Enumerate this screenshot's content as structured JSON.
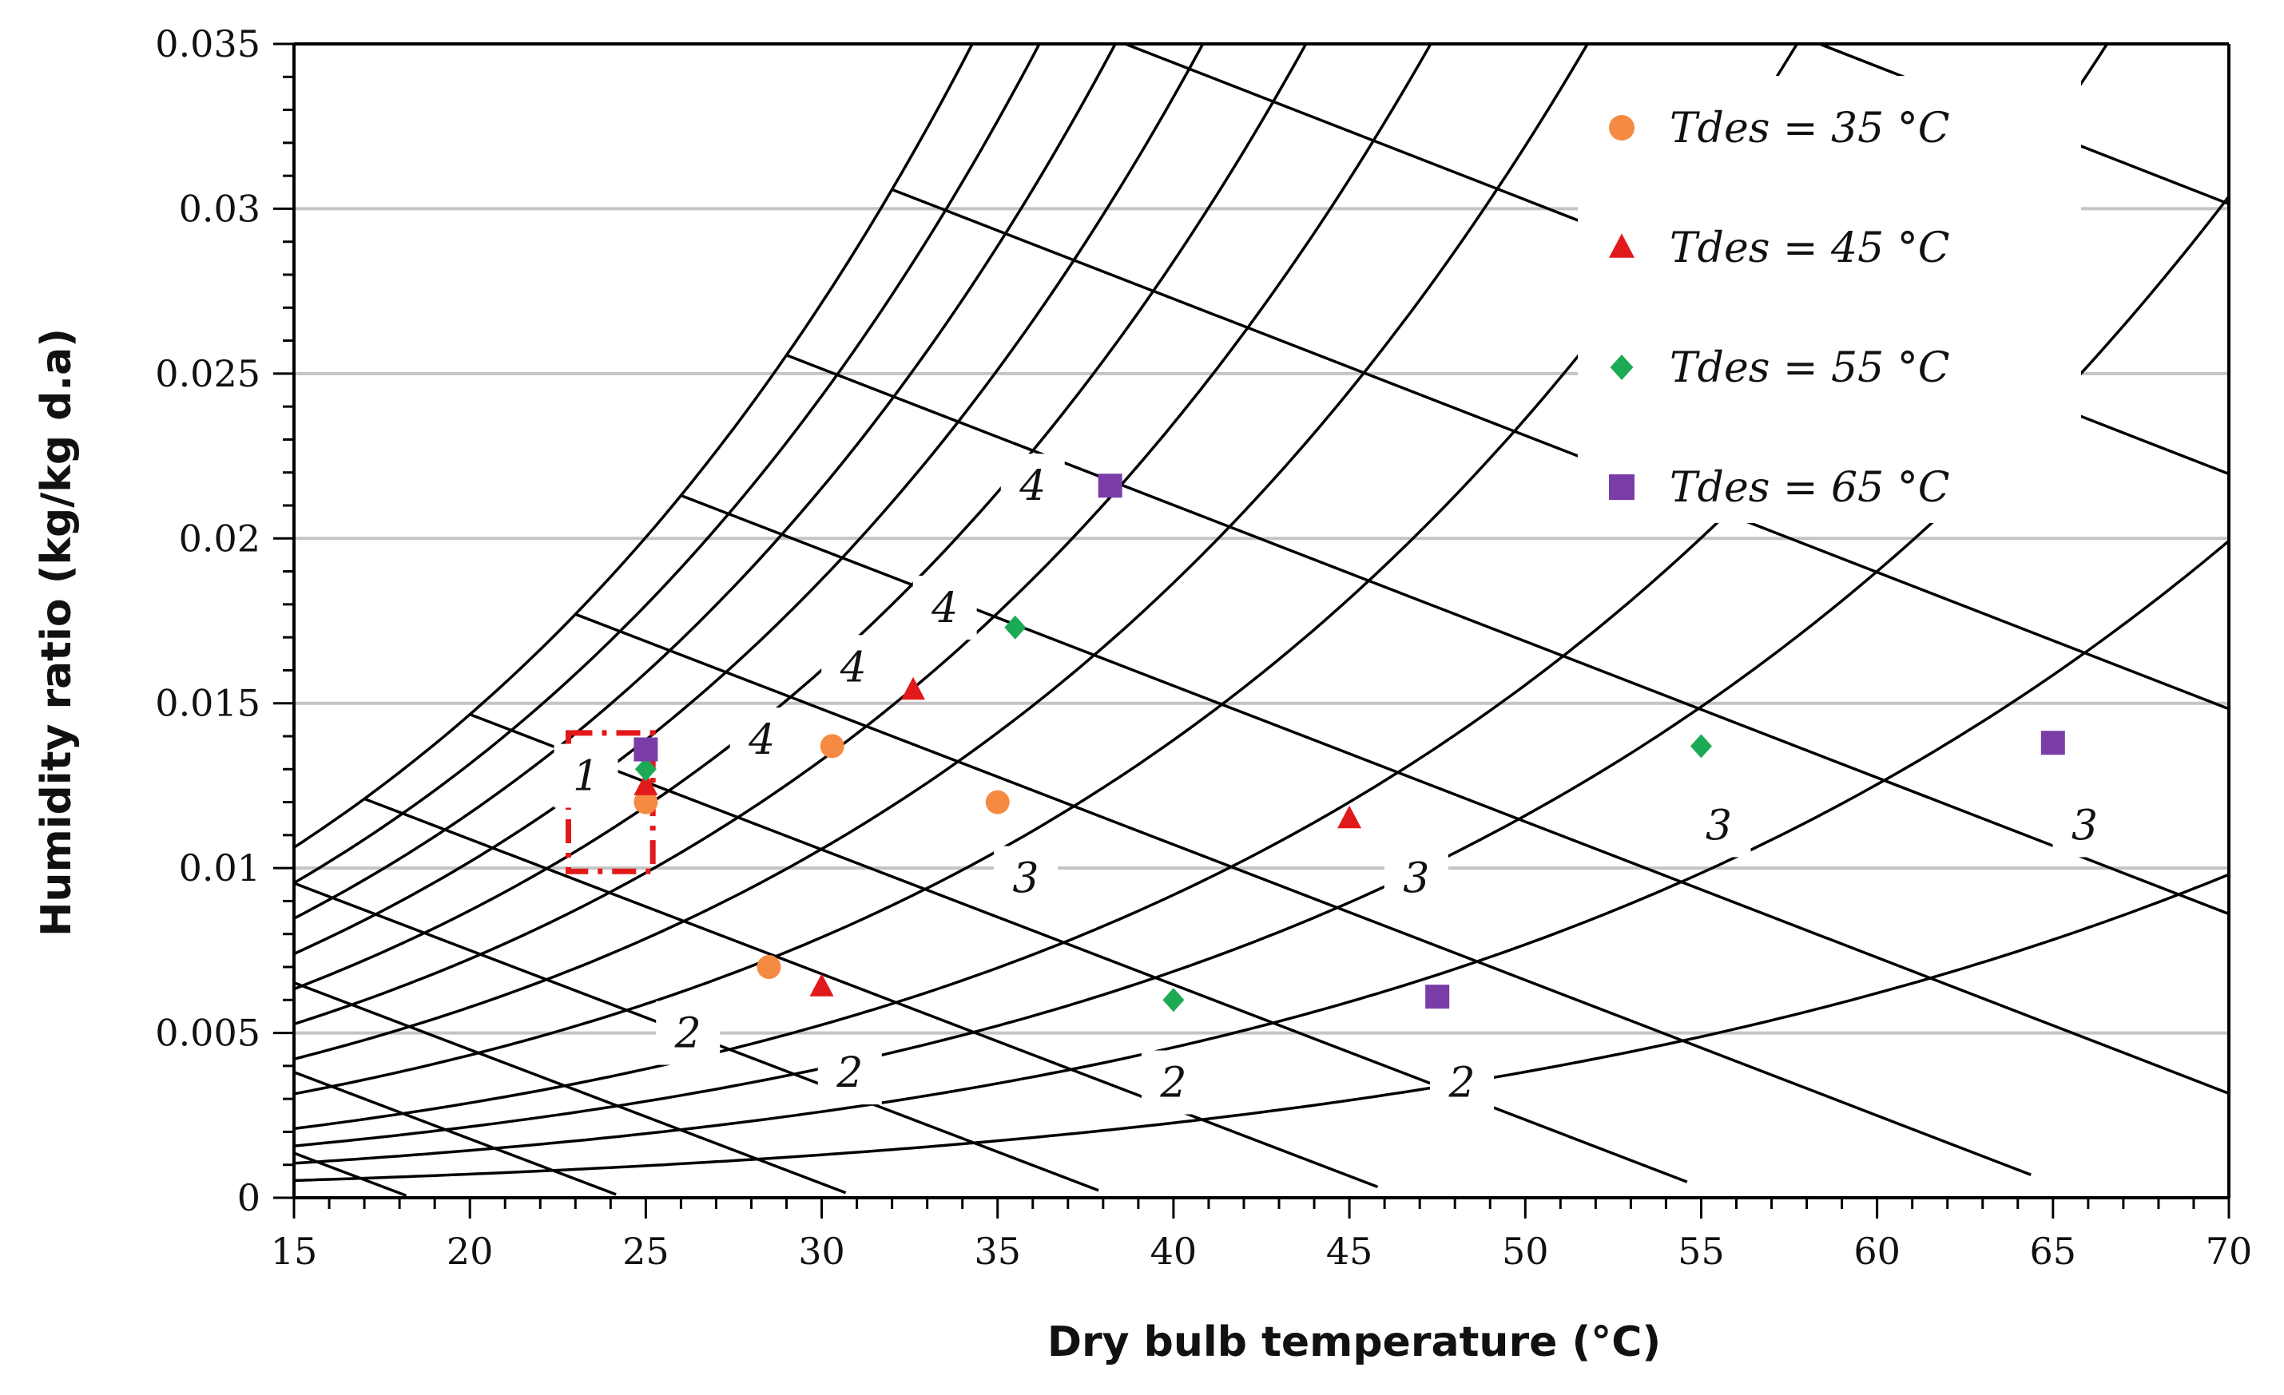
{
  "chart_data": {
    "type": "scatter",
    "title": "",
    "xlabel": "Dry bulb temperature (°C)",
    "ylabel": "Humidity ratio (kg/kg d.a)",
    "xlim": [
      15,
      70
    ],
    "ylim": [
      0,
      0.035
    ],
    "x_ticks": [
      15,
      20,
      25,
      30,
      35,
      40,
      45,
      50,
      55,
      60,
      65,
      70
    ],
    "y_ticks": [
      0,
      0.005,
      0.01,
      0.015,
      0.02,
      0.025,
      0.03,
      0.035
    ],
    "x_tick_labels": [
      "15",
      "20",
      "25",
      "30",
      "35",
      "40",
      "45",
      "50",
      "55",
      "60",
      "65",
      "70"
    ],
    "y_tick_labels": [
      "0",
      "0.005",
      "0.01",
      "0.015",
      "0.02",
      "0.025",
      "0.03",
      "0.035"
    ],
    "grid": "horizontal",
    "legend_position": "top-right",
    "background": "psychrometric chart: relative humidity curves and constant wet-bulb lines",
    "series": [
      {
        "name": "Tdes = 35 °C",
        "label": "Tdes = 35 °C",
        "marker": "circle",
        "color": "#F58A42",
        "points": [
          [
            25,
            0.012
          ],
          [
            28.5,
            0.007
          ],
          [
            30.3,
            0.0137
          ],
          [
            35,
            0.012
          ]
        ]
      },
      {
        "name": "Tdes = 45 °C",
        "label": "Tdes = 45 °C",
        "marker": "triangle",
        "color": "#E2191B",
        "points": [
          [
            25,
            0.0125
          ],
          [
            30,
            0.0064
          ],
          [
            32.6,
            0.0154
          ],
          [
            45,
            0.0115
          ]
        ]
      },
      {
        "name": "Tdes = 55 °C",
        "label": "Tdes = 55 °C",
        "marker": "diamond",
        "color": "#1DAA55",
        "points": [
          [
            25,
            0.013
          ],
          [
            35.5,
            0.0173
          ],
          [
            40,
            0.006
          ],
          [
            55,
            0.0137
          ]
        ]
      },
      {
        "name": "Tdes = 65 °C",
        "label": "Tdes = 65 °C",
        "marker": "square",
        "color": "#7A3DA8",
        "points": [
          [
            25,
            0.0136
          ],
          [
            38.2,
            0.0216
          ],
          [
            47.5,
            0.0061
          ],
          [
            65,
            0.0138
          ]
        ]
      }
    ],
    "annotations": [
      {
        "text": "1",
        "x": 23.3,
        "y": 0.0128
      },
      {
        "text": "2",
        "x": 26.2,
        "y": 0.005
      },
      {
        "text": "2",
        "x": 30.8,
        "y": 0.0038
      },
      {
        "text": "2",
        "x": 40,
        "y": 0.0035
      },
      {
        "text": "2",
        "x": 48.2,
        "y": 0.0035
      },
      {
        "text": "3",
        "x": 35.8,
        "y": 0.0097
      },
      {
        "text": "3",
        "x": 46.9,
        "y": 0.0097
      },
      {
        "text": "3",
        "x": 55.5,
        "y": 0.0113
      },
      {
        "text": "3",
        "x": 65.9,
        "y": 0.0113
      },
      {
        "text": "4",
        "x": 28.3,
        "y": 0.0139
      },
      {
        "text": "4",
        "x": 30.9,
        "y": 0.0161
      },
      {
        "text": "4",
        "x": 33.5,
        "y": 0.0179
      },
      {
        "text": "4",
        "x": 36,
        "y": 0.0216
      }
    ],
    "highlight_box": {
      "x": [
        22.8,
        25.2
      ],
      "y": [
        0.0099,
        0.0141
      ],
      "color": "#E2191B",
      "style": "dash-dot"
    }
  }
}
